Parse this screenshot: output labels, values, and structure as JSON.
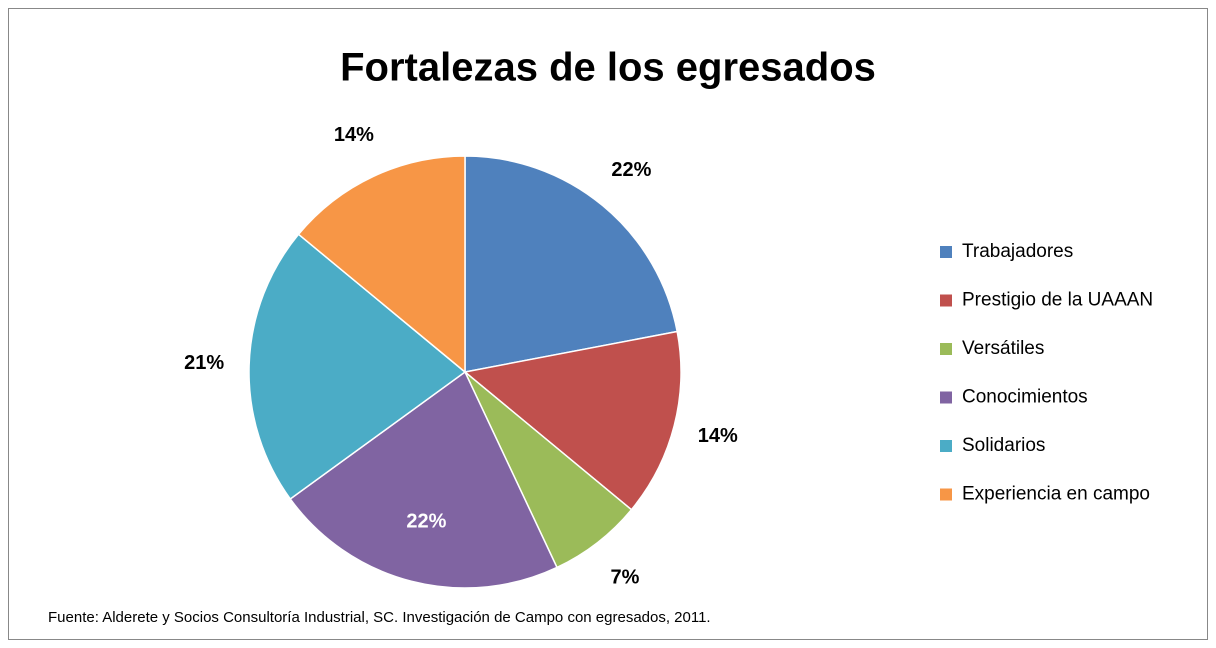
{
  "chart_data": {
    "type": "pie",
    "title": "Fortalezas de los egresados",
    "categories": [
      "Trabajadores",
      "Prestigio de la UAAAN",
      "Versátiles",
      "Conocimientos",
      "Solidarios",
      "Experiencia en campo"
    ],
    "values": [
      22,
      14,
      7,
      22,
      21,
      14
    ],
    "value_labels": [
      "22%",
      "14%",
      "7%",
      "22%",
      "21%",
      "14%"
    ],
    "colors": [
      "#4f81bd",
      "#c0504d",
      "#9bbb59",
      "#8064a2",
      "#4bacc6",
      "#f79646"
    ],
    "legend": "right",
    "source": "Fuente: Alderete y Socios Consultoría Industrial, SC. Investigación de Campo con egresados, 2011."
  }
}
